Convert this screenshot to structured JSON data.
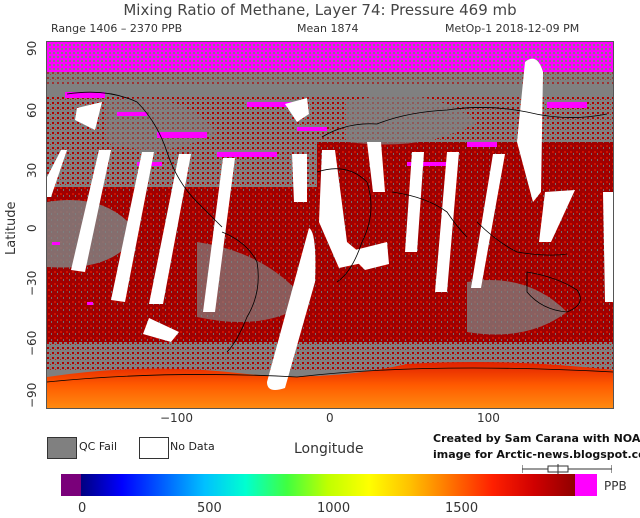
{
  "header": {
    "title": "Mixing Ratio of Methane, Layer 74: Pressure 469 mb",
    "range": "Range 1406 – 2370 PPB",
    "mean": "Mean 1874",
    "satellite_date": "MetOp-1 2018-12-09 PM"
  },
  "axes": {
    "y_title": "Latitude",
    "x_title": "Longitude",
    "y_ticks": [
      "90",
      "60",
      "30",
      "0",
      "−30",
      "−60",
      "−90"
    ],
    "x_ticks": [
      "−100",
      "0",
      "100"
    ]
  },
  "legend": {
    "qc_fail": "QC Fail",
    "no_data": "No Data",
    "qc_fail_color": "#808080",
    "no_data_color": "#ffffff"
  },
  "credit": {
    "line1": "Created by Sam Carana with NOAA",
    "line2": "image for Arctic-news.blogspot.com"
  },
  "colorbar": {
    "unit": "PPB",
    "ticks": [
      "0",
      "500",
      "1000",
      "1500"
    ],
    "colors": [
      "#7a007a",
      "#000080",
      "#0000ff",
      "#0060ff",
      "#00c0ff",
      "#00ffd0",
      "#40ff40",
      "#c0ff00",
      "#ffff00",
      "#ffc000",
      "#ff7000",
      "#ff2000",
      "#d00000",
      "#900000"
    ],
    "overflow_color": "#ff00ff"
  },
  "map_colors": {
    "dark_red": "#a00000",
    "red": "#e01000",
    "orange": "#ff6a00",
    "magenta": "#ff00ff",
    "coast": "#000000"
  }
}
